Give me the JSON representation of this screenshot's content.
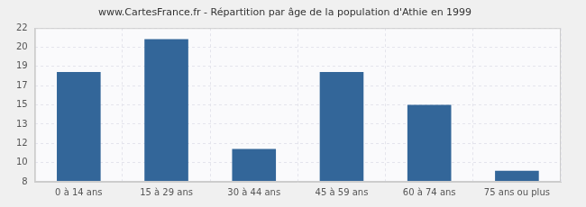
{
  "chart_data": {
    "type": "bar",
    "title": "www.CartesFrance.fr - Répartition par âge de la population d'Athie en 1999",
    "categories": [
      "0 à 14 ans",
      "15 à 29 ans",
      "30 à 44 ans",
      "45 à 59 ans",
      "60 à 74 ans",
      "75 ans ou plus"
    ],
    "values": [
      18,
      21,
      11,
      18,
      15,
      9
    ],
    "color": "#336699",
    "ylim": [
      8,
      22
    ],
    "yticks": [
      8,
      {
        "value": 9.75,
        "label": "10"
      },
      {
        "value": 11.5,
        "label": "12"
      },
      {
        "value": 13.25,
        "label": "13"
      },
      15,
      {
        "value": 16.75,
        "label": "17"
      },
      {
        "value": 18.5,
        "label": "19"
      },
      {
        "value": 20.25,
        "label": "20"
      },
      22
    ],
    "grid": true
  }
}
